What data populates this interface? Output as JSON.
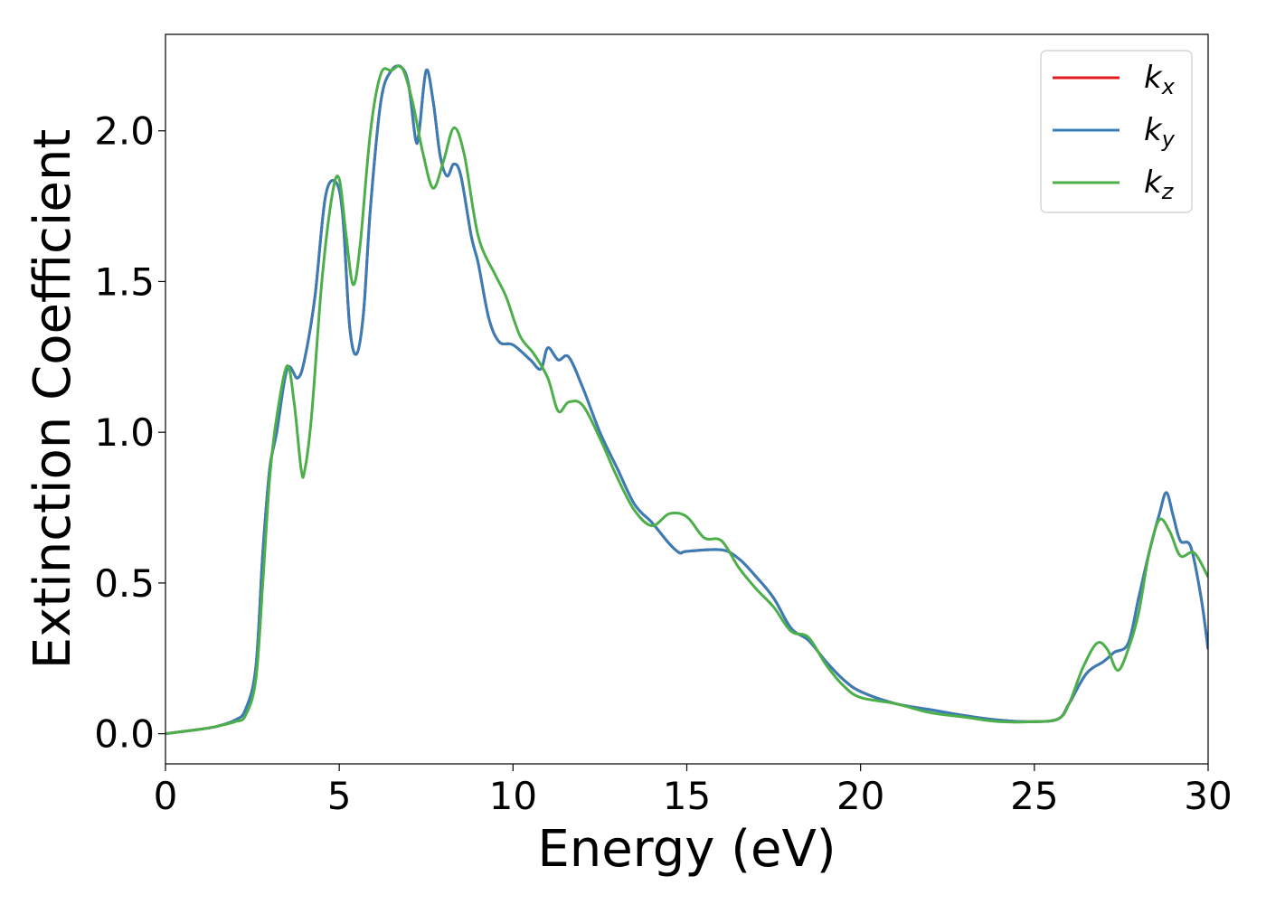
{
  "chart_data": {
    "type": "line",
    "title": "",
    "xlabel": "Energy (eV)",
    "ylabel": "Extinction Coefficient",
    "xlim": [
      0,
      30
    ],
    "ylim": [
      -0.1,
      2.32
    ],
    "x_ticks": [
      0,
      5,
      10,
      15,
      20,
      25,
      30
    ],
    "x_tick_labels": [
      "0",
      "5",
      "10",
      "15",
      "20",
      "25",
      "30"
    ],
    "y_ticks": [
      0.0,
      0.5,
      1.0,
      1.5,
      2.0
    ],
    "y_tick_labels": [
      "0.0",
      "0.5",
      "1.0",
      "1.5",
      "2.0"
    ],
    "grid": false,
    "legend_position": "top-right",
    "series": [
      {
        "name": "k_x",
        "label_base": "k",
        "label_sub": "x",
        "color": "#e41a1c",
        "points": [
          [
            0,
            0
          ],
          [
            1,
            0.015
          ],
          [
            1.5,
            0.025
          ],
          [
            2,
            0.045
          ],
          [
            2.3,
            0.08
          ],
          [
            2.6,
            0.22
          ],
          [
            2.8,
            0.6
          ],
          [
            3.0,
            0.88
          ],
          [
            3.2,
            1.0
          ],
          [
            3.5,
            1.21
          ],
          [
            3.8,
            1.18
          ],
          [
            4.0,
            1.24
          ],
          [
            4.3,
            1.45
          ],
          [
            4.6,
            1.78
          ],
          [
            4.9,
            1.83
          ],
          [
            5.1,
            1.72
          ],
          [
            5.3,
            1.35
          ],
          [
            5.5,
            1.26
          ],
          [
            5.7,
            1.4
          ],
          [
            5.9,
            1.75
          ],
          [
            6.2,
            2.1
          ],
          [
            6.5,
            2.2
          ],
          [
            6.8,
            2.21
          ],
          [
            7.0,
            2.15
          ],
          [
            7.2,
            1.97
          ],
          [
            7.3,
            2.0
          ],
          [
            7.5,
            2.2
          ],
          [
            7.7,
            2.1
          ],
          [
            7.9,
            1.92
          ],
          [
            8.1,
            1.85
          ],
          [
            8.3,
            1.89
          ],
          [
            8.5,
            1.85
          ],
          [
            8.8,
            1.65
          ],
          [
            9.0,
            1.56
          ],
          [
            9.3,
            1.38
          ],
          [
            9.6,
            1.3
          ],
          [
            10.0,
            1.29
          ],
          [
            10.5,
            1.24
          ],
          [
            10.8,
            1.21
          ],
          [
            11.0,
            1.28
          ],
          [
            11.3,
            1.24
          ],
          [
            11.6,
            1.25
          ],
          [
            12.0,
            1.15
          ],
          [
            12.5,
            1.0
          ],
          [
            13.0,
            0.88
          ],
          [
            13.5,
            0.76
          ],
          [
            14.0,
            0.7
          ],
          [
            14.5,
            0.63
          ],
          [
            14.8,
            0.6
          ],
          [
            15.0,
            0.605
          ],
          [
            16.0,
            0.61
          ],
          [
            16.5,
            0.58
          ],
          [
            17.0,
            0.52
          ],
          [
            17.5,
            0.45
          ],
          [
            18.0,
            0.35
          ],
          [
            18.5,
            0.31
          ],
          [
            19.0,
            0.24
          ],
          [
            19.5,
            0.18
          ],
          [
            20.0,
            0.14
          ],
          [
            21.0,
            0.1
          ],
          [
            22.0,
            0.08
          ],
          [
            23.0,
            0.06
          ],
          [
            24.0,
            0.045
          ],
          [
            25.0,
            0.04
          ],
          [
            25.7,
            0.05
          ],
          [
            26.0,
            0.1
          ],
          [
            26.5,
            0.2
          ],
          [
            27.0,
            0.24
          ],
          [
            27.3,
            0.27
          ],
          [
            27.7,
            0.3
          ],
          [
            28.0,
            0.45
          ],
          [
            28.3,
            0.6
          ],
          [
            28.6,
            0.73
          ],
          [
            28.8,
            0.8
          ],
          [
            29.0,
            0.72
          ],
          [
            29.2,
            0.64
          ],
          [
            29.5,
            0.62
          ],
          [
            29.8,
            0.45
          ],
          [
            30.0,
            0.28
          ]
        ]
      },
      {
        "name": "k_y",
        "label_base": "k",
        "label_sub": "y",
        "color": "#377eb8",
        "points": [
          [
            0,
            0
          ],
          [
            1,
            0.015
          ],
          [
            1.5,
            0.025
          ],
          [
            2,
            0.045
          ],
          [
            2.3,
            0.08
          ],
          [
            2.6,
            0.22
          ],
          [
            2.8,
            0.6
          ],
          [
            3.0,
            0.88
          ],
          [
            3.2,
            1.0
          ],
          [
            3.5,
            1.21
          ],
          [
            3.8,
            1.18
          ],
          [
            4.0,
            1.24
          ],
          [
            4.3,
            1.45
          ],
          [
            4.6,
            1.78
          ],
          [
            4.9,
            1.83
          ],
          [
            5.1,
            1.72
          ],
          [
            5.3,
            1.35
          ],
          [
            5.5,
            1.26
          ],
          [
            5.7,
            1.4
          ],
          [
            5.9,
            1.75
          ],
          [
            6.2,
            2.1
          ],
          [
            6.5,
            2.2
          ],
          [
            6.8,
            2.21
          ],
          [
            7.0,
            2.15
          ],
          [
            7.2,
            1.97
          ],
          [
            7.3,
            2.0
          ],
          [
            7.5,
            2.2
          ],
          [
            7.7,
            2.1
          ],
          [
            7.9,
            1.92
          ],
          [
            8.1,
            1.85
          ],
          [
            8.3,
            1.89
          ],
          [
            8.5,
            1.85
          ],
          [
            8.8,
            1.65
          ],
          [
            9.0,
            1.56
          ],
          [
            9.3,
            1.38
          ],
          [
            9.6,
            1.3
          ],
          [
            10.0,
            1.29
          ],
          [
            10.5,
            1.24
          ],
          [
            10.8,
            1.21
          ],
          [
            11.0,
            1.28
          ],
          [
            11.3,
            1.24
          ],
          [
            11.6,
            1.25
          ],
          [
            12.0,
            1.15
          ],
          [
            12.5,
            1.0
          ],
          [
            13.0,
            0.88
          ],
          [
            13.5,
            0.76
          ],
          [
            14.0,
            0.7
          ],
          [
            14.5,
            0.63
          ],
          [
            14.8,
            0.6
          ],
          [
            15.0,
            0.605
          ],
          [
            16.0,
            0.61
          ],
          [
            16.5,
            0.58
          ],
          [
            17.0,
            0.52
          ],
          [
            17.5,
            0.45
          ],
          [
            18.0,
            0.35
          ],
          [
            18.5,
            0.31
          ],
          [
            19.0,
            0.24
          ],
          [
            19.5,
            0.18
          ],
          [
            20.0,
            0.14
          ],
          [
            21.0,
            0.1
          ],
          [
            22.0,
            0.08
          ],
          [
            23.0,
            0.06
          ],
          [
            24.0,
            0.045
          ],
          [
            25.0,
            0.04
          ],
          [
            25.7,
            0.05
          ],
          [
            26.0,
            0.1
          ],
          [
            26.5,
            0.2
          ],
          [
            27.0,
            0.24
          ],
          [
            27.3,
            0.27
          ],
          [
            27.7,
            0.3
          ],
          [
            28.0,
            0.45
          ],
          [
            28.3,
            0.6
          ],
          [
            28.6,
            0.73
          ],
          [
            28.8,
            0.8
          ],
          [
            29.0,
            0.72
          ],
          [
            29.2,
            0.64
          ],
          [
            29.5,
            0.62
          ],
          [
            29.8,
            0.45
          ],
          [
            30.0,
            0.28
          ]
        ]
      },
      {
        "name": "k_z",
        "label_base": "k",
        "label_sub": "z",
        "color": "#4daf4a",
        "points": [
          [
            0,
            0
          ],
          [
            1,
            0.015
          ],
          [
            1.5,
            0.025
          ],
          [
            2,
            0.04
          ],
          [
            2.3,
            0.06
          ],
          [
            2.6,
            0.18
          ],
          [
            2.8,
            0.5
          ],
          [
            3.0,
            0.85
          ],
          [
            3.2,
            1.05
          ],
          [
            3.5,
            1.22
          ],
          [
            3.7,
            1.1
          ],
          [
            3.9,
            0.88
          ],
          [
            4.0,
            0.87
          ],
          [
            4.2,
            1.05
          ],
          [
            4.5,
            1.5
          ],
          [
            4.8,
            1.79
          ],
          [
            5.0,
            1.84
          ],
          [
            5.2,
            1.65
          ],
          [
            5.4,
            1.49
          ],
          [
            5.6,
            1.62
          ],
          [
            5.9,
            2.0
          ],
          [
            6.2,
            2.19
          ],
          [
            6.5,
            2.2
          ],
          [
            6.8,
            2.21
          ],
          [
            7.1,
            2.1
          ],
          [
            7.4,
            1.93
          ],
          [
            7.7,
            1.81
          ],
          [
            8.0,
            1.9
          ],
          [
            8.3,
            2.01
          ],
          [
            8.6,
            1.92
          ],
          [
            9.0,
            1.65
          ],
          [
            9.5,
            1.52
          ],
          [
            9.8,
            1.45
          ],
          [
            10.2,
            1.32
          ],
          [
            10.6,
            1.26
          ],
          [
            11.0,
            1.18
          ],
          [
            11.3,
            1.07
          ],
          [
            11.6,
            1.1
          ],
          [
            12.0,
            1.09
          ],
          [
            12.5,
            0.98
          ],
          [
            13.0,
            0.85
          ],
          [
            13.5,
            0.74
          ],
          [
            14.0,
            0.69
          ],
          [
            14.5,
            0.73
          ],
          [
            15.0,
            0.72
          ],
          [
            15.5,
            0.65
          ],
          [
            16.0,
            0.64
          ],
          [
            16.5,
            0.55
          ],
          [
            17.0,
            0.48
          ],
          [
            17.5,
            0.42
          ],
          [
            18.0,
            0.34
          ],
          [
            18.5,
            0.32
          ],
          [
            19.0,
            0.23
          ],
          [
            19.5,
            0.16
          ],
          [
            20.0,
            0.12
          ],
          [
            21.0,
            0.1
          ],
          [
            22.0,
            0.07
          ],
          [
            23.0,
            0.055
          ],
          [
            24.0,
            0.04
          ],
          [
            25.0,
            0.04
          ],
          [
            25.7,
            0.05
          ],
          [
            26.0,
            0.1
          ],
          [
            26.4,
            0.22
          ],
          [
            26.8,
            0.3
          ],
          [
            27.1,
            0.28
          ],
          [
            27.4,
            0.21
          ],
          [
            27.7,
            0.28
          ],
          [
            28.0,
            0.4
          ],
          [
            28.3,
            0.6
          ],
          [
            28.6,
            0.71
          ],
          [
            28.9,
            0.67
          ],
          [
            29.2,
            0.59
          ],
          [
            29.6,
            0.6
          ],
          [
            30.0,
            0.52
          ]
        ]
      }
    ]
  }
}
